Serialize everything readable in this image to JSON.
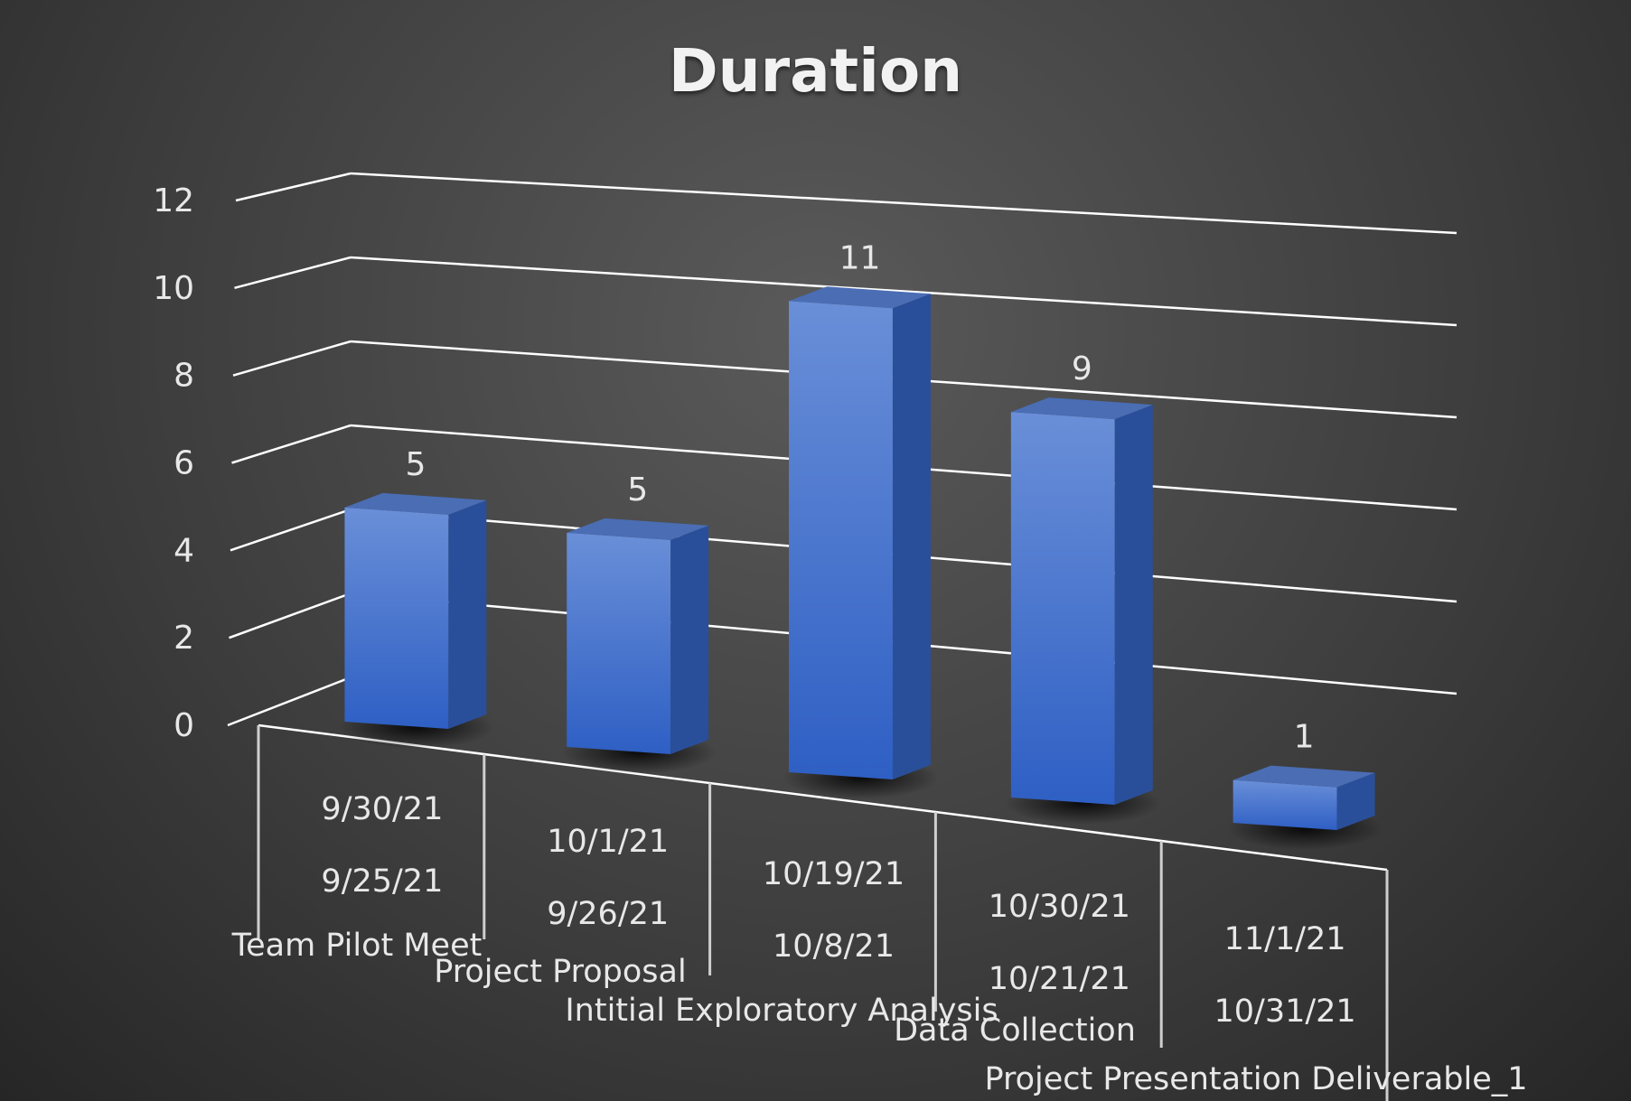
{
  "chart_data": {
    "type": "bar",
    "title": "Duration",
    "categories": [
      {
        "name": "Team Pilot Meet",
        "end": "9/30/21",
        "start": "9/25/21"
      },
      {
        "name": "Project Proposal",
        "end": "10/1/21",
        "start": "9/26/21"
      },
      {
        "name": "Intitial Exploratory Analysis",
        "end": "10/19/21",
        "start": "10/8/21"
      },
      {
        "name": "Data Collection",
        "end": "10/30/21",
        "start": "10/21/21"
      },
      {
        "name": "Project Presentation Deliverable_1",
        "end": "11/1/21",
        "start": "10/31/21"
      }
    ],
    "values": [
      5,
      5,
      11,
      9,
      1
    ],
    "y_ticks": [
      "0",
      "2",
      "4",
      "6",
      "8",
      "10",
      "12"
    ],
    "ylim": [
      0,
      12
    ],
    "grid": true,
    "bar_style": "3d-column",
    "colors": {
      "bar_front_top": "#6a8fd8",
      "bar_front_bottom": "#2e5fc4",
      "bar_side": "#2a4f9a",
      "bar_top": "#4a6db4",
      "grid": "#ffffff",
      "text": "#e8e8e8"
    }
  }
}
